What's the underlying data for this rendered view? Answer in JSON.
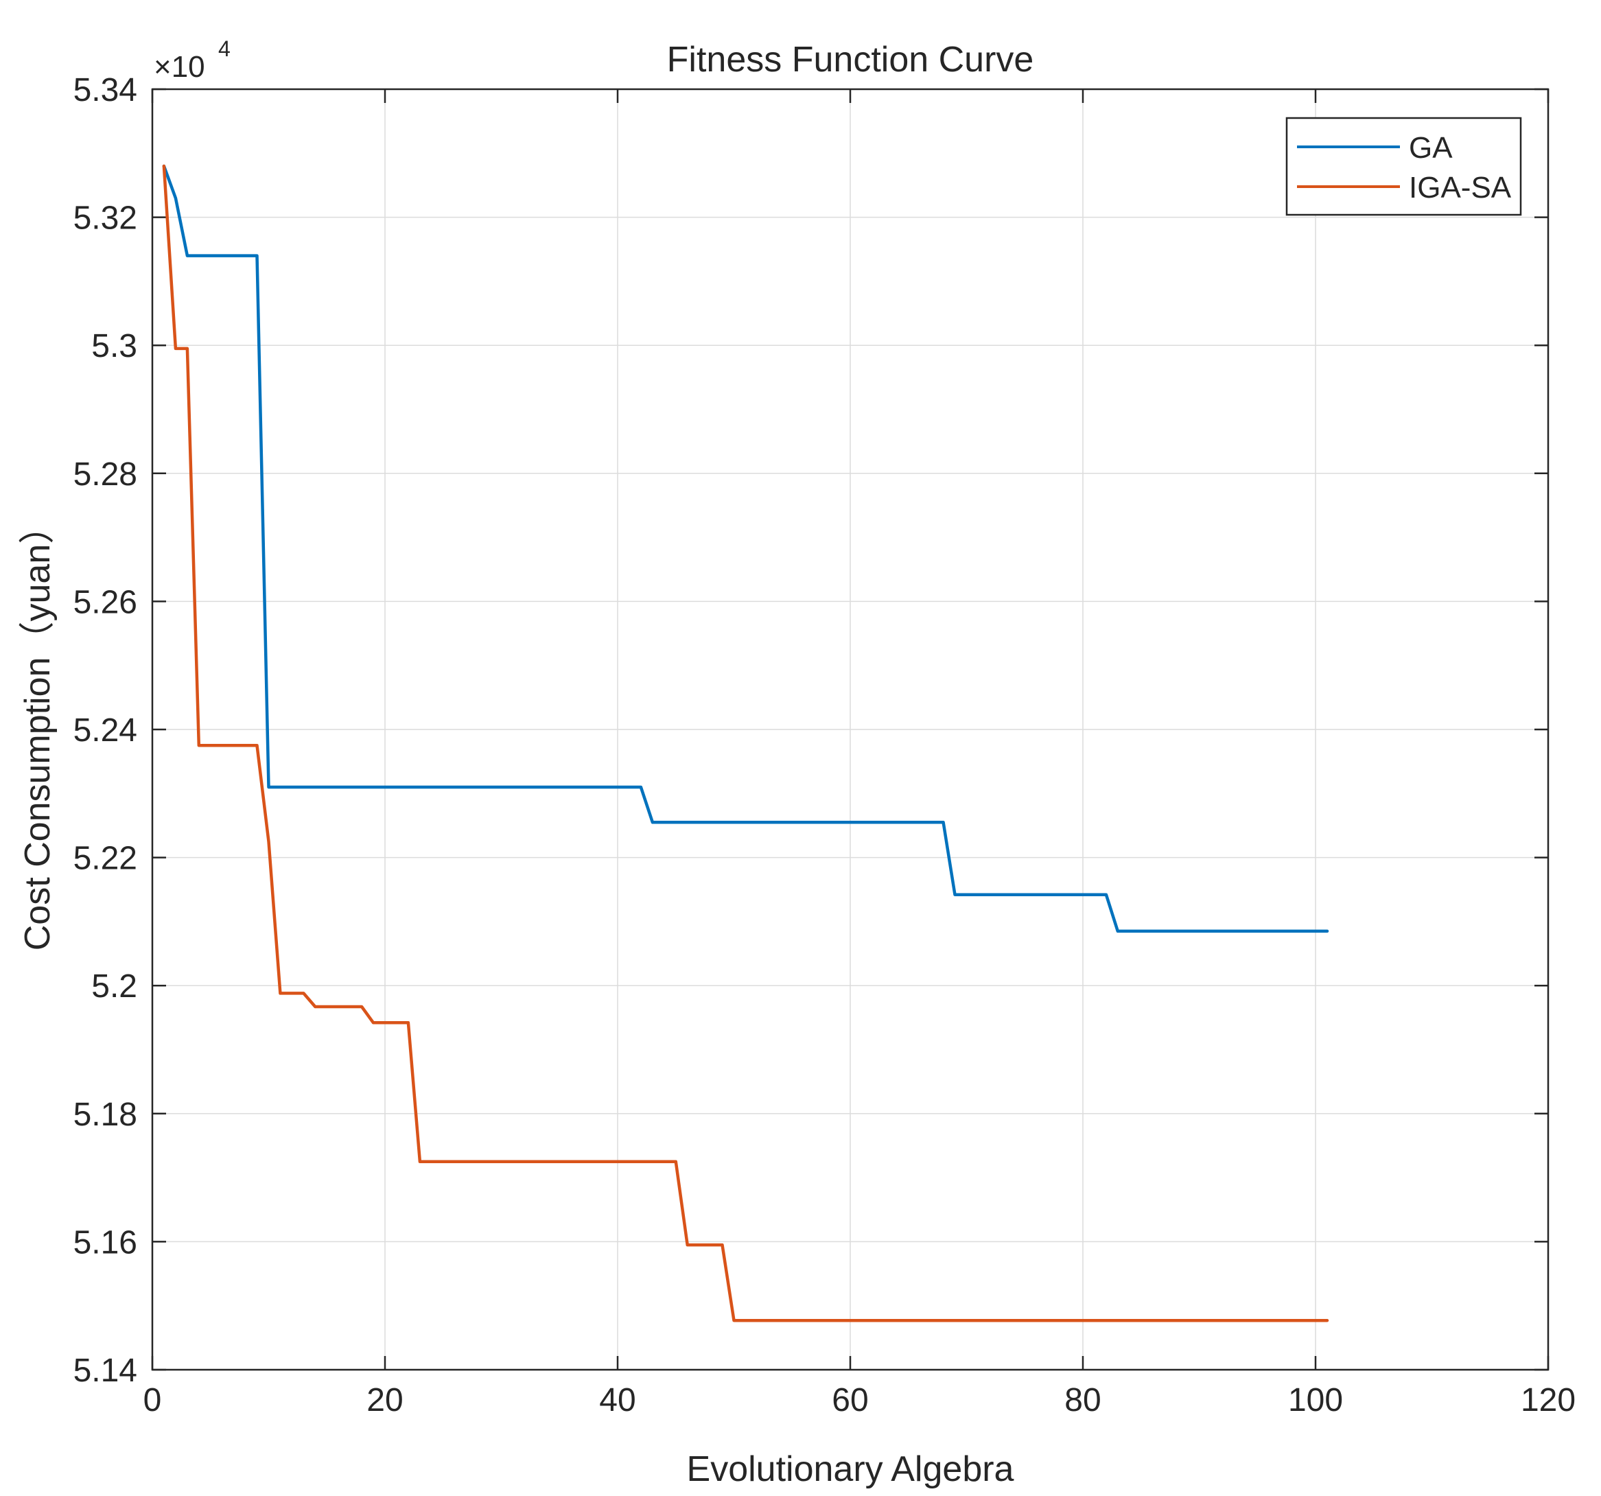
{
  "chart_data": {
    "type": "line",
    "title": "Fitness Function Curve",
    "xlabel": "Evolutionary Algebra",
    "ylabel": "Cost Consumption（yuan）",
    "y_exponent_label": "×10",
    "y_exponent_power": "4",
    "xlim": [
      0,
      120
    ],
    "ylim": [
      5.14,
      5.34
    ],
    "xticks": [
      0,
      20,
      40,
      60,
      80,
      100,
      120
    ],
    "yticks": [
      5.14,
      5.16,
      5.18,
      5.2,
      5.22,
      5.24,
      5.26,
      5.28,
      5.3,
      5.32,
      5.34
    ],
    "ytick_labels": [
      "5.14",
      "5.16",
      "5.18",
      "5.2",
      "5.22",
      "5.24",
      "5.26",
      "5.28",
      "5.3",
      "5.32",
      "5.34"
    ],
    "grid": true,
    "legend_position": "top-right",
    "series": [
      {
        "name": "GA",
        "color": "#0072BD",
        "x": [
          1,
          2,
          3,
          9,
          10,
          42,
          43,
          68,
          69,
          82,
          83,
          101
        ],
        "y": [
          5.328,
          5.323,
          5.314,
          5.314,
          5.231,
          5.231,
          5.2255,
          5.2255,
          5.2142,
          5.2142,
          5.2085,
          5.2085
        ]
      },
      {
        "name": "IGA-SA",
        "color": "#D95319",
        "x": [
          1,
          2,
          3,
          4,
          9,
          10,
          11,
          13,
          14,
          18,
          19,
          22,
          23,
          45,
          46,
          49,
          50,
          101
        ],
        "y": [
          5.328,
          5.2995,
          5.2995,
          5.2375,
          5.2375,
          5.2225,
          5.1988,
          5.1988,
          5.1967,
          5.1967,
          5.1942,
          5.1942,
          5.1725,
          5.1725,
          5.1595,
          5.1595,
          5.1477,
          5.1477
        ]
      }
    ]
  }
}
